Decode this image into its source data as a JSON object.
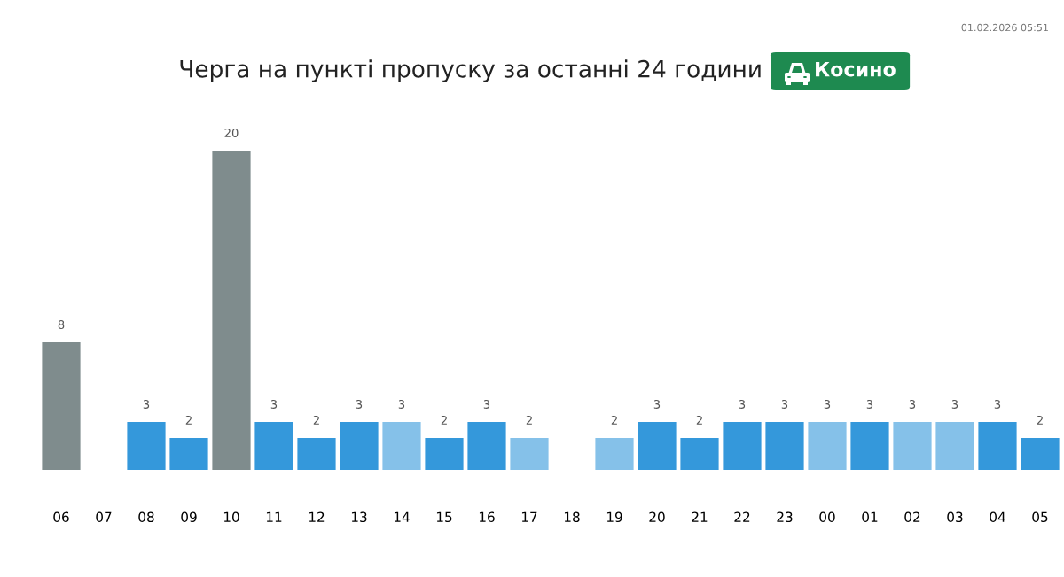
{
  "chart_data": {
    "type": "bar",
    "title": "Черга на пункті пропуску за останні 24 години",
    "subtitle": "Косино",
    "annotations": [
      "01.02.2026 05:51"
    ],
    "categories": [
      "06",
      "07",
      "08",
      "09",
      "10",
      "11",
      "12",
      "13",
      "14",
      "15",
      "16",
      "17",
      "18",
      "19",
      "20",
      "21",
      "22",
      "23",
      "00",
      "01",
      "02",
      "03",
      "04",
      "05"
    ],
    "values": [
      8,
      null,
      3,
      2,
      20,
      3,
      2,
      3,
      3,
      2,
      3,
      2,
      null,
      2,
      3,
      2,
      3,
      3,
      3,
      3,
      3,
      3,
      3,
      2
    ],
    "colors": [
      "#7f8c8d",
      null,
      "#3498db",
      "#3498db",
      "#7f8c8d",
      "#3498db",
      "#3498db",
      "#3498db",
      "#85c1e9",
      "#3498db",
      "#3498db",
      "#85c1e9",
      null,
      "#85c1e9",
      "#3498db",
      "#3498db",
      "#3498db",
      "#3498db",
      "#85c1e9",
      "#3498db",
      "#85c1e9",
      "#85c1e9",
      "#3498db",
      "#3498db"
    ],
    "data_labels": true
  }
}
